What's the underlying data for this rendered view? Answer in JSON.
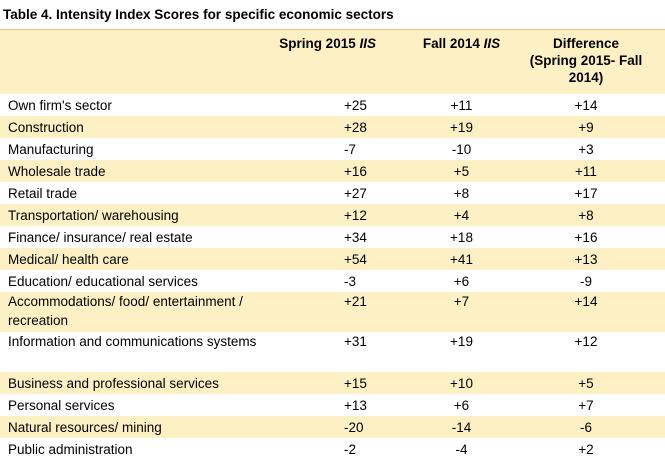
{
  "table": {
    "title": "Table 4. Intensity Index Scores for specific economic sectors",
    "headers": {
      "sector": "",
      "spring_prefix": "Spring 2015 ",
      "spring_suffix": "IIS",
      "fall_prefix": "Fall 2014 ",
      "fall_suffix": "IIS",
      "diff_line1": "Difference",
      "diff_line2": "(Spring 2015- Fall 2014)"
    },
    "rows": [
      {
        "sector": "Own firm's sector",
        "spring": "+25",
        "fall": "+11",
        "diff": "+14"
      },
      {
        "sector": "Construction",
        "spring": "+28",
        "fall": "+19",
        "diff": "+9"
      },
      {
        "sector": "Manufacturing",
        "spring": "-7",
        "fall": "-10",
        "diff": "+3"
      },
      {
        "sector": "Wholesale trade",
        "spring": "+16",
        "fall": "+5",
        "diff": "+11"
      },
      {
        "sector": "Retail trade",
        "spring": "+27",
        "fall": "+8",
        "diff": "+17"
      },
      {
        "sector": "Transportation/ warehousing",
        "spring": "+12",
        "fall": "+4",
        "diff": "+8"
      },
      {
        "sector": "Finance/ insurance/ real estate",
        "spring": "+34",
        "fall": "+18",
        "diff": "+16"
      },
      {
        "sector": "Medical/ health care",
        "spring": "+54",
        "fall": "+41",
        "diff": "+13"
      },
      {
        "sector": "Education/ educational services",
        "spring": "-3",
        "fall": "+6",
        "diff": "-9"
      },
      {
        "sector": "Accommodations/ food/ entertainment / recreation",
        "spring": "+21",
        "fall": "+7",
        "diff": "+14"
      },
      {
        "sector": "Information and communications systems",
        "spring": "+31",
        "fall": "+19",
        "diff": "+12"
      },
      {
        "sector": "Business and professional services",
        "spring": "+15",
        "fall": "+10",
        "diff": "+5"
      },
      {
        "sector": "Personal services",
        "spring": "+13",
        "fall": "+6",
        "diff": "+7"
      },
      {
        "sector": "Natural resources/ mining",
        "spring": "-20",
        "fall": "-14",
        "diff": "-6"
      },
      {
        "sector": "Public administration",
        "spring": "-2",
        "fall": "-4",
        "diff": "+2"
      }
    ]
  },
  "colors": {
    "shade": "#fdf0c4",
    "rule": "#f0c77a"
  }
}
